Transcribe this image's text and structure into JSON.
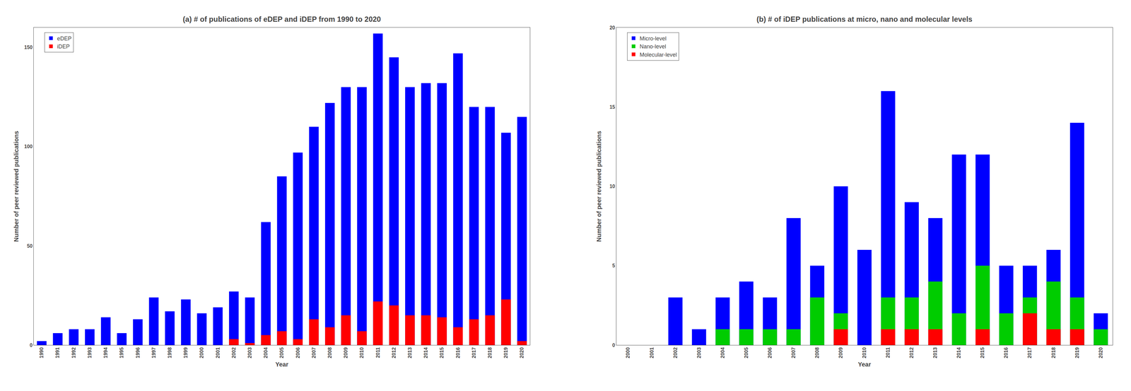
{
  "chart_data": [
    {
      "type": "bar",
      "title": "(a) # of publications of eDEP and iDEP from 1990 to 2020",
      "xlabel": "Year",
      "ylabel": "Number of peer reviewed publications",
      "categories": [
        "1990",
        "1991",
        "1992",
        "1993",
        "1994",
        "1995",
        "1996",
        "1997",
        "1998",
        "1999",
        "2000",
        "2001",
        "2002",
        "2003",
        "2004",
        "2005",
        "2006",
        "2007",
        "2008",
        "2009",
        "2010",
        "2011",
        "2012",
        "2013",
        "2014",
        "2015",
        "2016",
        "2017",
        "2018",
        "2019",
        "2020"
      ],
      "series": [
        {
          "name": "eDEP",
          "color": "#0000FF",
          "values": [
            2,
            6,
            8,
            8,
            14,
            6,
            13,
            24,
            17,
            23,
            16,
            19,
            27,
            24,
            62,
            85,
            97,
            110,
            122,
            130,
            130,
            157,
            145,
            130,
            132,
            132,
            147,
            120,
            120,
            107,
            115
          ]
        },
        {
          "name": "iDEP",
          "color": "#FF0000",
          "values": [
            0,
            0,
            0,
            0,
            0,
            0,
            0,
            0,
            0,
            0,
            0,
            0,
            3,
            1,
            5,
            7,
            3,
            13,
            9,
            15,
            7,
            22,
            20,
            15,
            15,
            14,
            9,
            13,
            15,
            23,
            2
          ]
        }
      ],
      "ylim": [
        0,
        160
      ],
      "yticks": [
        0,
        50,
        100,
        150
      ],
      "stacked": false,
      "grid": false,
      "legend": "upper left"
    },
    {
      "type": "bar",
      "title": "(b) # of iDEP publications at micro, nano and molecular levels",
      "xlabel": "Year",
      "ylabel": "Number of peer reviewed publications",
      "categories": [
        "2000",
        "2001",
        "2002",
        "2003",
        "2004",
        "2005",
        "2006",
        "2007",
        "2008",
        "2009",
        "2010",
        "2011",
        "2012",
        "2013",
        "2014",
        "2015",
        "2016",
        "2017",
        "2018",
        "2019",
        "2020"
      ],
      "series": [
        {
          "name": "Micro-level",
          "color": "#0000FF",
          "values": [
            0,
            0,
            3,
            1,
            3,
            4,
            3,
            8,
            5,
            10,
            6,
            16,
            9,
            8,
            12,
            12,
            5,
            5,
            6,
            14,
            2
          ]
        },
        {
          "name": "Nano-level",
          "color": "#00CC00",
          "values": [
            0,
            0,
            0,
            0,
            1,
            1,
            1,
            1,
            3,
            2,
            0,
            3,
            3,
            4,
            2,
            5,
            2,
            3,
            4,
            3,
            1
          ]
        },
        {
          "name": "Molecular-level",
          "color": "#FF0000",
          "values": [
            0,
            0,
            0,
            0,
            0,
            0,
            0,
            0,
            0,
            1,
            0,
            1,
            1,
            1,
            0,
            1,
            0,
            2,
            1,
            1,
            0
          ]
        }
      ],
      "ylim": [
        0,
        20
      ],
      "yticks": [
        0,
        5,
        10,
        15,
        20
      ],
      "stacked": false,
      "grid": false,
      "legend": "upper left"
    }
  ]
}
